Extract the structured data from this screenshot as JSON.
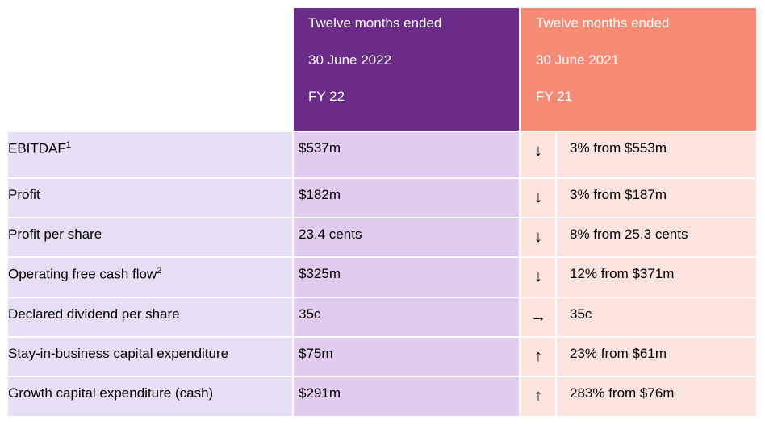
{
  "header": {
    "fy22": {
      "line1": "Twelve months ended",
      "line2": "30 June 2022",
      "line3": "FY 22"
    },
    "fy21": {
      "line1": "Twelve months ended",
      "line2": "30 June 2021",
      "line3": "FY 21"
    }
  },
  "rows": [
    {
      "label": "EBITDAF",
      "sup": "1",
      "fy22": "$537m",
      "arrow": "↓",
      "fy21": "3% from $553m"
    },
    {
      "label": "Profit",
      "sup": "",
      "fy22": "$182m",
      "arrow": "↓",
      "fy21": "3% from $187m"
    },
    {
      "label": "Profit per share",
      "sup": "",
      "fy22": "23.4 cents",
      "arrow": "↓",
      "fy21": "8% from 25.3 cents"
    },
    {
      "label": "Operating free cash flow",
      "sup": "2",
      "fy22": "$325m",
      "arrow": "↓",
      "fy21": "12% from $371m"
    },
    {
      "label": "Declared dividend per share",
      "sup": "",
      "fy22": "35c",
      "arrow": "→",
      "fy21": "35c"
    },
    {
      "label": "Stay-in-business capital expenditure",
      "sup": "",
      "fy22": "$75m",
      "arrow": "↑",
      "fy21": "23% from $61m"
    },
    {
      "label": "Growth capital expenditure (cash)",
      "sup": "",
      "fy22": "$291m",
      "arrow": "↑",
      "fy21": "283% from $76m"
    }
  ],
  "colors": {
    "fy22_header": "#6a2c86",
    "fy21_header": "#f68c76",
    "label_bg": "#e6def2",
    "fy22_bg": "#e2ccee",
    "fy21_bg": "#fce4de"
  }
}
